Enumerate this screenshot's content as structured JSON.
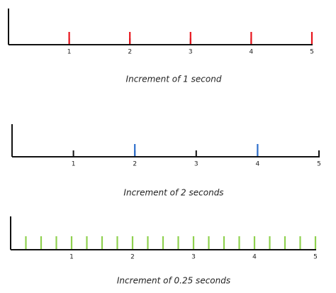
{
  "panels": [
    {
      "caption": "Increment of 1 second",
      "ticks": [
        1,
        2,
        3,
        4,
        5
      ],
      "marker_color": "#e8141c",
      "markers": [
        1,
        2,
        3,
        4,
        5
      ]
    },
    {
      "caption": "Increment of 2 seconds",
      "ticks": [
        1,
        2,
        3,
        4,
        5
      ],
      "marker_color": "#2e6fcc",
      "markers": [
        2,
        4
      ]
    },
    {
      "caption": "Increment of 0.25 seconds",
      "ticks": [
        1,
        2,
        3,
        4,
        5
      ],
      "marker_color": "#8fd14f",
      "markers": [
        0.25,
        0.5,
        0.75,
        1,
        1.25,
        1.5,
        1.75,
        2,
        2.25,
        2.5,
        2.75,
        3,
        3.25,
        3.5,
        3.75,
        4,
        4.25,
        4.5,
        4.75,
        5
      ]
    }
  ]
}
